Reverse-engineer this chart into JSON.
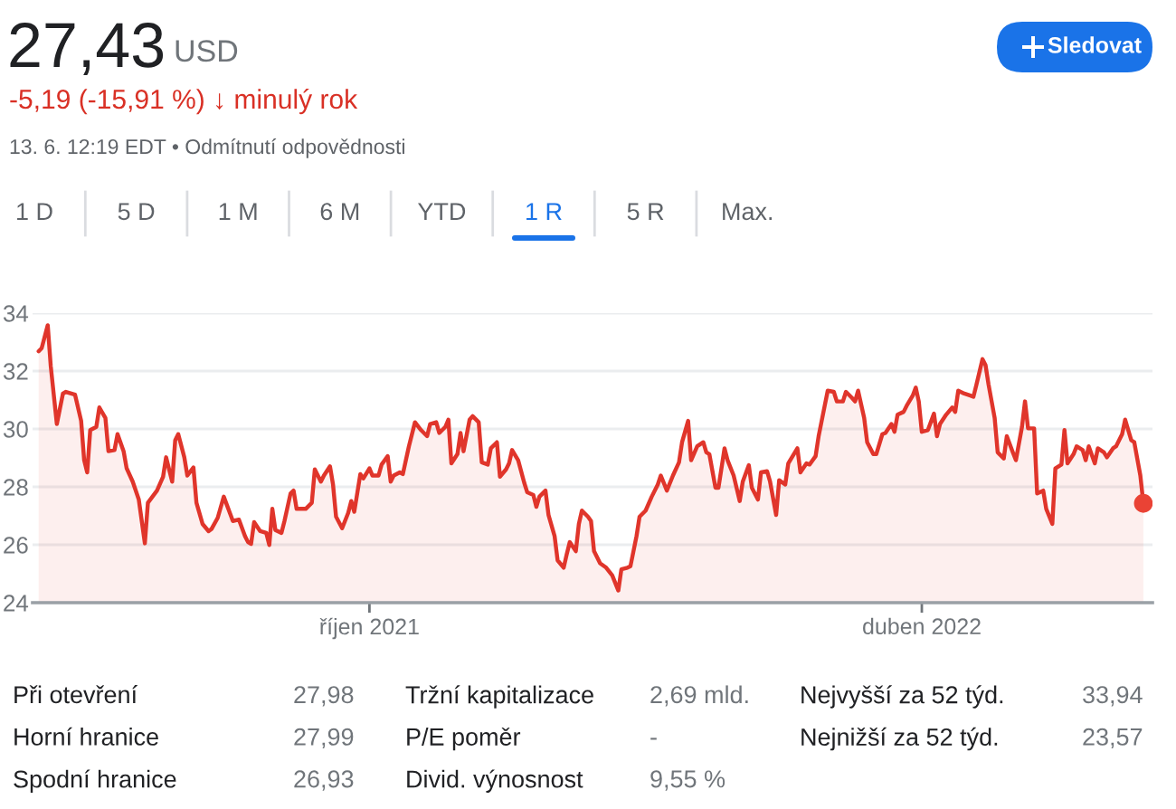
{
  "chart_data": [
    {
      "type": "area",
      "title": "27,43",
      "subtitle": "-5,19 (-15,91 %) ↓ minulý rok",
      "annotations": [
        "USD",
        "13. 6. 12:19 EDT • Odmítnutí odpovědnosti",
        "Sledovat",
        "1 D",
        "5 D",
        "1 M",
        "6 M",
        "YTD",
        "1 R",
        "5 R",
        "Max."
      ],
      "x": [
        "2021-06-14",
        "2021-06-15",
        "2021-06-17",
        "2021-06-18",
        "2021-06-20",
        "2021-06-22",
        "2021-06-23",
        "2021-06-26",
        "2021-06-28",
        "2021-06-29",
        "2021-06-30",
        "2021-07-01",
        "2021-07-03",
        "2021-07-04",
        "2021-07-06",
        "2021-07-07",
        "2021-07-09",
        "2021-07-10",
        "2021-07-12",
        "2021-07-13",
        "2021-07-15",
        "2021-07-17",
        "2021-07-19",
        "2021-07-20",
        "2021-07-23",
        "2021-07-25",
        "2021-07-26",
        "2021-07-28",
        "2021-07-29",
        "2021-07-30",
        "2021-08-01",
        "2021-08-02",
        "2021-08-04",
        "2021-08-05",
        "2021-08-07",
        "2021-08-09",
        "2021-08-10",
        "2021-08-12",
        "2021-08-14",
        "2021-08-16",
        "2021-08-17",
        "2021-08-19",
        "2021-08-21",
        "2021-08-22",
        "2021-08-23",
        "2021-08-24",
        "2021-08-26",
        "2021-08-28",
        "2021-08-29",
        "2021-08-30",
        "2021-08-31",
        "2021-09-02",
        "2021-09-03",
        "2021-09-05",
        "2021-09-06",
        "2021-09-07",
        "2021-09-10",
        "2021-09-12",
        "2021-09-13",
        "2021-09-15",
        "2021-09-16",
        "2021-09-18",
        "2021-09-19",
        "2021-09-20",
        "2021-09-22",
        "2021-09-24",
        "2021-09-25",
        "2021-09-26",
        "2021-09-28",
        "2021-09-29",
        "2021-10-01",
        "2021-10-02",
        "2021-10-04",
        "2021-10-05",
        "2021-10-07",
        "2021-10-08",
        "2021-10-09",
        "2021-10-11",
        "2021-10-12",
        "2021-10-14",
        "2021-10-16",
        "2021-10-18",
        "2021-10-20",
        "2021-10-21",
        "2021-10-23",
        "2021-10-24",
        "2021-10-26",
        "2021-10-27",
        "2021-10-28",
        "2021-10-30",
        "2021-10-31",
        "2021-11-01",
        "2021-11-03",
        "2021-11-04",
        "2021-11-06",
        "2021-11-07",
        "2021-11-09",
        "2021-11-10",
        "2021-11-12",
        "2021-11-13",
        "2021-11-15",
        "2021-11-16",
        "2021-11-17",
        "2021-11-19",
        "2021-11-21",
        "2021-11-22",
        "2021-11-24",
        "2021-11-25",
        "2021-11-26",
        "2021-11-28",
        "2021-11-29",
        "2021-12-01",
        "2021-12-02",
        "2021-12-04",
        "2021-12-05",
        "2021-12-06",
        "2021-12-08",
        "2021-12-09",
        "2021-12-10",
        "2021-12-12",
        "2021-12-13",
        "2021-12-14",
        "2021-12-16",
        "2021-12-18",
        "2021-12-20",
        "2021-12-22",
        "2021-12-23",
        "2021-12-25",
        "2021-12-26",
        "2021-12-28",
        "2021-12-29",
        "2021-12-31",
        "2022-01-02",
        "2022-01-04",
        "2022-01-05",
        "2022-01-07",
        "2022-01-09",
        "2022-01-11",
        "2022-01-12",
        "2022-01-14",
        "2022-01-15",
        "2022-01-17",
        "2022-01-19",
        "2022-01-20",
        "2022-01-21",
        "2022-01-23",
        "2022-01-24",
        "2022-01-26",
        "2022-01-27",
        "2022-01-29",
        "2022-01-31",
        "2022-02-01",
        "2022-02-03",
        "2022-02-04",
        "2022-02-06",
        "2022-02-07",
        "2022-02-09",
        "2022-02-10",
        "2022-02-12",
        "2022-02-13",
        "2022-02-15",
        "2022-02-16",
        "2022-02-19",
        "2022-02-20",
        "2022-02-22",
        "2022-02-23",
        "2022-02-25",
        "2022-02-26",
        "2022-02-28",
        "2022-03-01",
        "2022-03-03",
        "2022-03-04",
        "2022-03-06",
        "2022-03-07",
        "2022-03-09",
        "2022-03-10",
        "2022-03-11",
        "2022-03-13",
        "2022-03-14",
        "2022-03-16",
        "2022-03-17",
        "2022-03-19",
        "2022-03-20",
        "2022-03-22",
        "2022-03-23",
        "2022-03-24",
        "2022-03-26",
        "2022-03-27",
        "2022-03-29",
        "2022-03-30",
        "2022-03-31",
        "2022-04-01",
        "2022-04-03",
        "2022-04-05",
        "2022-04-06",
        "2022-04-07",
        "2022-04-09",
        "2022-04-11",
        "2022-04-12",
        "2022-04-13",
        "2022-04-15",
        "2022-04-17",
        "2022-04-18",
        "2022-04-19",
        "2022-04-21",
        "2022-04-22",
        "2022-04-23",
        "2022-04-25",
        "2022-04-26",
        "2022-04-28",
        "2022-04-29",
        "2022-05-01",
        "2022-05-02",
        "2022-05-04",
        "2022-05-05",
        "2022-05-06",
        "2022-05-08",
        "2022-05-09",
        "2022-05-11",
        "2022-05-12",
        "2022-05-14",
        "2022-05-15",
        "2022-05-17",
        "2022-05-18",
        "2022-05-19",
        "2022-05-21",
        "2022-05-22",
        "2022-05-24",
        "2022-05-25",
        "2022-05-26",
        "2022-05-28",
        "2022-05-29",
        "2022-05-31",
        "2022-06-01",
        "2022-06-03",
        "2022-06-04",
        "2022-06-06",
        "2022-06-07",
        "2022-06-09",
        "2022-06-10",
        "2022-06-12",
        "2022-06-13"
      ],
      "series": [
        {
          "color": "#e0352b",
          "values": [
            32.68,
            32.79,
            33.58,
            32.16,
            30.17,
            31.22,
            31.28,
            31.18,
            30.28,
            28.92,
            28.5,
            29.96,
            30.07,
            30.74,
            30.38,
            29.23,
            29.27,
            29.82,
            29.23,
            28.64,
            28.18,
            27.56,
            26.05,
            27.45,
            27.87,
            28.35,
            29.02,
            28.18,
            29.61,
            29.82,
            29.02,
            28.39,
            28.67,
            27.45,
            26.72,
            26.47,
            26.55,
            26.93,
            27.66,
            27.1,
            26.82,
            26.87,
            26.3,
            26.09,
            26.03,
            26.78,
            26.47,
            26.41,
            25.99,
            27.24,
            26.51,
            26.41,
            26.82,
            27.77,
            27.87,
            27.24,
            27.24,
            27.45,
            28.6,
            28.18,
            28.39,
            28.71,
            28.08,
            26.97,
            26.57,
            27.1,
            27.51,
            27.14,
            28.44,
            28.29,
            28.64,
            28.39,
            28.39,
            28.77,
            29.06,
            28.18,
            28.39,
            28.5,
            28.44,
            29.4,
            30.23,
            29.96,
            29.75,
            30.17,
            30.23,
            29.86,
            30.07,
            30.32,
            28.81,
            29.13,
            29.86,
            29.23,
            30.32,
            30.44,
            30.23,
            28.85,
            28.77,
            29.33,
            29.54,
            28.35,
            28.6,
            28.81,
            29.27,
            28.92,
            28.14,
            27.81,
            27.72,
            27.31,
            27.66,
            27.87,
            27.03,
            26.3,
            25.46,
            25.21,
            25.67,
            26.09,
            25.78,
            26.72,
            27.18,
            26.97,
            26.82,
            25.78,
            25.36,
            25.21,
            24.94,
            24.42,
            25.15,
            25.21,
            25.26,
            26.3,
            26.97,
            27.18,
            27.66,
            28.08,
            28.39,
            27.87,
            28.39,
            28.85,
            29.54,
            30.28,
            28.92,
            29.4,
            29.54,
            29.19,
            29.13,
            27.97,
            27.97,
            29.33,
            28.92,
            28.39,
            27.51,
            28.18,
            28.75,
            27.97,
            27.56,
            28.5,
            28.54,
            28.18,
            27.03,
            28.23,
            28.08,
            28.81,
            29.33,
            28.5,
            28.81,
            28.77,
            29.06,
            29.75,
            30.8,
            31.32,
            31.28,
            30.95,
            30.95,
            31.28,
            31.07,
            30.95,
            31.32,
            30.38,
            29.54,
            29.13,
            29.13,
            29.82,
            29.86,
            30.17,
            29.9,
            30.49,
            30.59,
            30.8,
            31.15,
            31.43,
            30.95,
            29.9,
            29.96,
            30.53,
            29.75,
            30.17,
            30.49,
            30.74,
            30.59,
            31.32,
            31.22,
            31.15,
            31.11,
            31.53,
            32.41,
            32.2,
            31.53,
            30.38,
            29.19,
            28.98,
            29.75,
            29.19,
            28.92,
            30.07,
            30.95,
            30.02,
            30.02,
            27.77,
            27.87,
            27.24,
            26.72,
            28.64,
            28.77,
            29.96,
            28.81,
            29.13,
            29.4,
            29.27,
            28.92,
            29.4,
            28.81,
            29.33,
            29.19,
            29.02,
            29.33,
            29.4,
            29.82,
            30.32,
            29.61,
            29.54,
            28.39,
            27.43
          ]
        },
        {
          "type": "scatter",
          "x": [
            "2022-06-13"
          ],
          "values": [
            27.43
          ],
          "color": "#ea4335",
          "marker": "circle"
        }
      ],
      "xlim": [
        "2021-06-12",
        "2022-06-16"
      ],
      "xticks": [
        {
          "value": "2021-10-01",
          "label": "říjen 2021"
        },
        {
          "value": "2022-04-01",
          "label": "duben 2022"
        }
      ],
      "ylim": [
        24,
        34
      ],
      "yticks": [
        24,
        26,
        28,
        30,
        32,
        34
      ],
      "grid": "y"
    },
    {
      "type": "other",
      "annotations": [
        "Při otevření",
        "27,98",
        "Tržní kapitalizace",
        "2,69 mld.",
        "Nejvyšší za 52 týd.",
        "33,94",
        "Horní hranice",
        "27,99",
        "P/E poměr",
        "-",
        "Nejnižší za 52 týd.",
        "23,57",
        "Spodní hranice",
        "26,93",
        "Divid. výnosnost",
        "9,55 %"
      ]
    }
  ]
}
